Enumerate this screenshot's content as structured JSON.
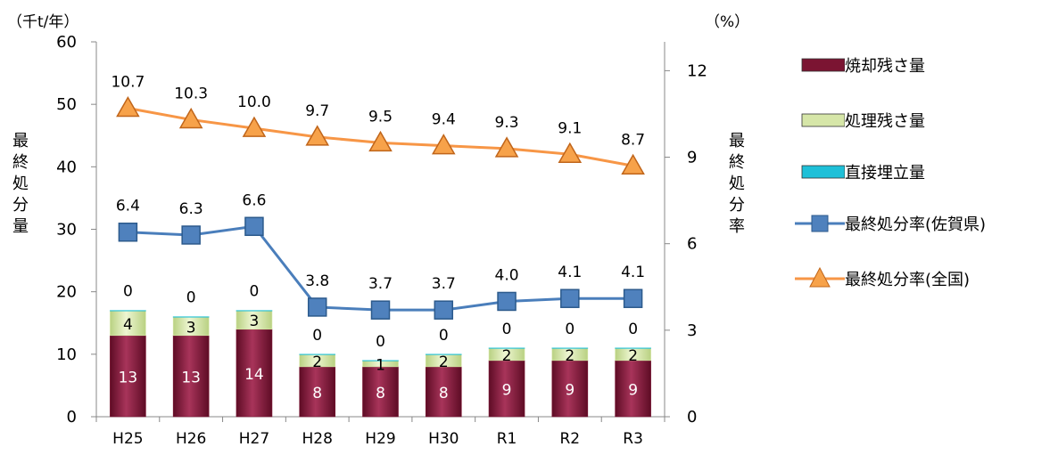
{
  "chart_data": {
    "type": "bar",
    "stacked": true,
    "categories": [
      "H25",
      "H26",
      "H27",
      "H28",
      "H29",
      "H30",
      "R1",
      "R2",
      "R3"
    ],
    "series": [
      {
        "name": "焼却残さ量",
        "kind": "bar",
        "axis": "left",
        "color": "#7b1432",
        "values": [
          13,
          13,
          14,
          8,
          8,
          8,
          9,
          9,
          9
        ],
        "labels": [
          "13",
          "13",
          "14",
          "8",
          "8",
          "8",
          "9",
          "9",
          "9"
        ]
      },
      {
        "name": "処理残さ量",
        "kind": "bar",
        "axis": "left",
        "color": "#d6e6a8",
        "values": [
          4,
          3,
          3,
          2,
          1,
          2,
          2,
          2,
          2
        ],
        "labels": [
          "4",
          "3",
          "3",
          "2",
          "1",
          "2",
          "2",
          "2",
          "2"
        ]
      },
      {
        "name": "直接埋立量",
        "kind": "bar",
        "axis": "left",
        "color": "#1ec0d8",
        "values": [
          0,
          0,
          0,
          0,
          0,
          0,
          0,
          0,
          0
        ],
        "labels": [
          "0",
          "0",
          "0",
          "0",
          "0",
          "0",
          "0",
          "0",
          "0"
        ]
      },
      {
        "name": "最終処分率(佐賀県)",
        "kind": "line",
        "axis": "right",
        "color": "#4a7ebb",
        "marker": "square",
        "values": [
          6.4,
          6.3,
          6.6,
          3.8,
          3.7,
          3.7,
          4.0,
          4.1,
          4.1
        ],
        "labels": [
          "6.4",
          "6.3",
          "6.6",
          "3.8",
          "3.7",
          "3.7",
          "4.0",
          "4.1",
          "4.1"
        ]
      },
      {
        "name": "最終処分率(全国)",
        "kind": "line",
        "axis": "right",
        "color": "#f79646",
        "marker": "triangle",
        "values": [
          10.7,
          10.3,
          10.0,
          9.7,
          9.5,
          9.4,
          9.3,
          9.1,
          8.7
        ],
        "labels": [
          "10.7",
          "10.3",
          "10.0",
          "9.7",
          "9.5",
          "9.4",
          "9.3",
          "9.1",
          "8.7"
        ]
      }
    ],
    "y_left": {
      "label": "最終処分量",
      "unit": "（千t/年）",
      "ylim": [
        0,
        60
      ],
      "ticks": [
        "0",
        "10",
        "20",
        "30",
        "40",
        "50",
        "60"
      ]
    },
    "y_right": {
      "label": "最終処分率",
      "unit": "（%）",
      "ylim": [
        0,
        13
      ],
      "ticks": [
        "0",
        "3",
        "6",
        "9",
        "12"
      ]
    },
    "grid": false,
    "legend_position": "right"
  }
}
